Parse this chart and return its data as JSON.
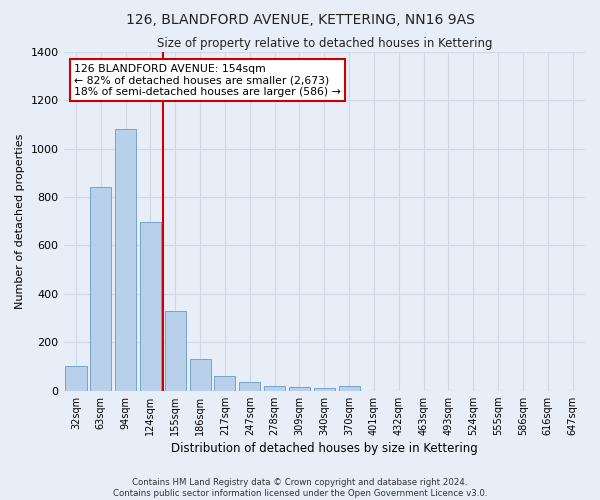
{
  "title": "126, BLANDFORD AVENUE, KETTERING, NN16 9AS",
  "subtitle": "Size of property relative to detached houses in Kettering",
  "xlabel": "Distribution of detached houses by size in Kettering",
  "ylabel": "Number of detached properties",
  "categories": [
    "32sqm",
    "63sqm",
    "94sqm",
    "124sqm",
    "155sqm",
    "186sqm",
    "217sqm",
    "247sqm",
    "278sqm",
    "309sqm",
    "340sqm",
    "370sqm",
    "401sqm",
    "432sqm",
    "463sqm",
    "493sqm",
    "524sqm",
    "555sqm",
    "586sqm",
    "616sqm",
    "647sqm"
  ],
  "values": [
    100,
    840,
    1080,
    695,
    330,
    130,
    60,
    35,
    20,
    15,
    10,
    20,
    0,
    0,
    0,
    0,
    0,
    0,
    0,
    0,
    0
  ],
  "bar_color": "#b8d0ea",
  "bar_edge_color": "#6699cc",
  "grid_color": "#d0d8e8",
  "bg_color": "#e8eef8",
  "marker_label_line1": "126 BLANDFORD AVENUE: 154sqm",
  "marker_label_line2": "← 82% of detached houses are smaller (2,673)",
  "marker_label_line3": "18% of semi-detached houses are larger (586) →",
  "annotation_box_color": "#ffffff",
  "annotation_border_color": "#cc0000",
  "marker_line_color": "#cc0000",
  "ylim": [
    0,
    1400
  ],
  "yticks": [
    0,
    200,
    400,
    600,
    800,
    1000,
    1200,
    1400
  ],
  "footnote1": "Contains HM Land Registry data © Crown copyright and database right 2024.",
  "footnote2": "Contains public sector information licensed under the Open Government Licence v3.0."
}
